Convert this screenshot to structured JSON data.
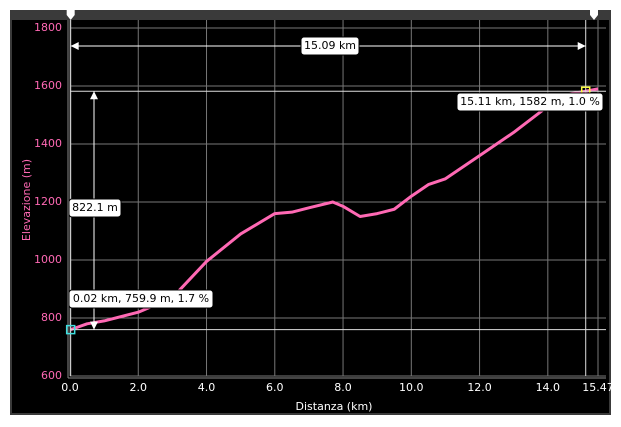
{
  "chart_data": {
    "type": "line",
    "x": [
      0.02,
      0.5,
      1.0,
      2.0,
      3.0,
      4.0,
      5.0,
      6.0,
      6.5,
      7.0,
      7.7,
      8.0,
      8.5,
      9.0,
      9.5,
      10.0,
      10.5,
      11.0,
      12.0,
      13.0,
      14.0,
      14.5,
      15.11,
      15.47
    ],
    "values": [
      759.9,
      780,
      790,
      820,
      870,
      995,
      1090,
      1160,
      1165,
      1180,
      1200,
      1185,
      1150,
      1160,
      1175,
      1220,
      1260,
      1280,
      1360,
      1440,
      1530,
      1570,
      1582,
      1590
    ],
    "color": "#ff69b4",
    "xlim": [
      0,
      15.47
    ],
    "ylim": [
      600,
      1800
    ],
    "xticks": [
      {
        "value": 0,
        "label": "0.0"
      },
      {
        "value": 2,
        "label": "2.0"
      },
      {
        "value": 4,
        "label": "4.0"
      },
      {
        "value": 6,
        "label": "6.0"
      },
      {
        "value": 8,
        "label": "8.0"
      },
      {
        "value": 10,
        "label": "10.0"
      },
      {
        "value": 12,
        "label": "12.0"
      },
      {
        "value": 14,
        "label": "14.0"
      },
      15.47
    ],
    "yticks": [
      600,
      800,
      1000,
      1200,
      1400,
      1600,
      1800
    ],
    "xlabel": "Distanza (km)",
    "ylabel": "Elevazione (m)",
    "grid": true,
    "markers": [
      {
        "x": 0.02,
        "y": 759.9,
        "color": "#40e0e0",
        "label": "0.02 km, 759.9 m, 1.7 %"
      },
      {
        "x": 15.11,
        "y": 1582,
        "color": "#ffff40",
        "label": "15.11 km, 1582 m, 1.0 %"
      }
    ],
    "distance_label": "15.09 km",
    "elevation_label": "822.1 m"
  }
}
